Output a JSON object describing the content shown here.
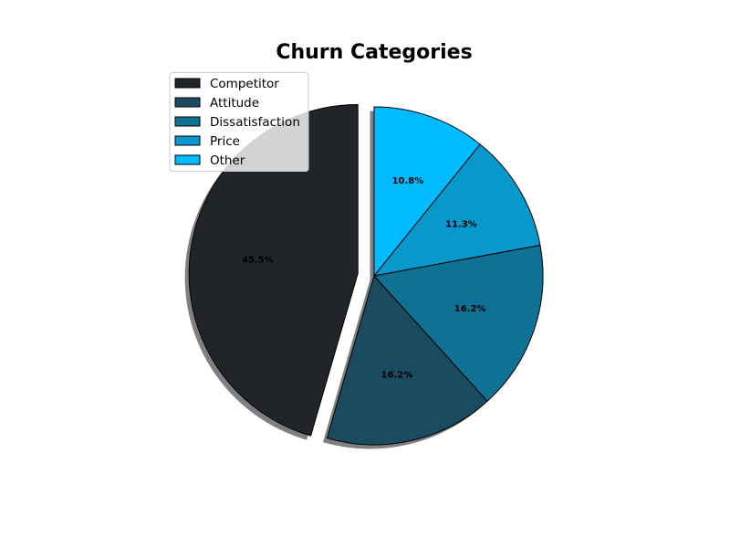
{
  "chart_data": {
    "type": "pie",
    "title": "Churn Categories",
    "start_angle_deg": 90,
    "direction": "counterclockwise",
    "shadow": true,
    "legend_position": "upper-left",
    "slices": [
      {
        "label": "Competitor",
        "value": 45.5,
        "display": "45.5%",
        "color": "#212529",
        "exploded": true
      },
      {
        "label": "Attitude",
        "value": 16.2,
        "display": "16.2%",
        "color": "#1b4b61",
        "exploded": false
      },
      {
        "label": "Dissatisfaction",
        "value": 16.2,
        "display": "16.2%",
        "color": "#0f7194",
        "exploded": false
      },
      {
        "label": "Price",
        "value": 11.3,
        "display": "11.3%",
        "color": "#0898cc",
        "exploded": false
      },
      {
        "label": "Other",
        "value": 10.8,
        "display": "10.8%",
        "color": "#00bbff",
        "exploded": false
      }
    ]
  }
}
